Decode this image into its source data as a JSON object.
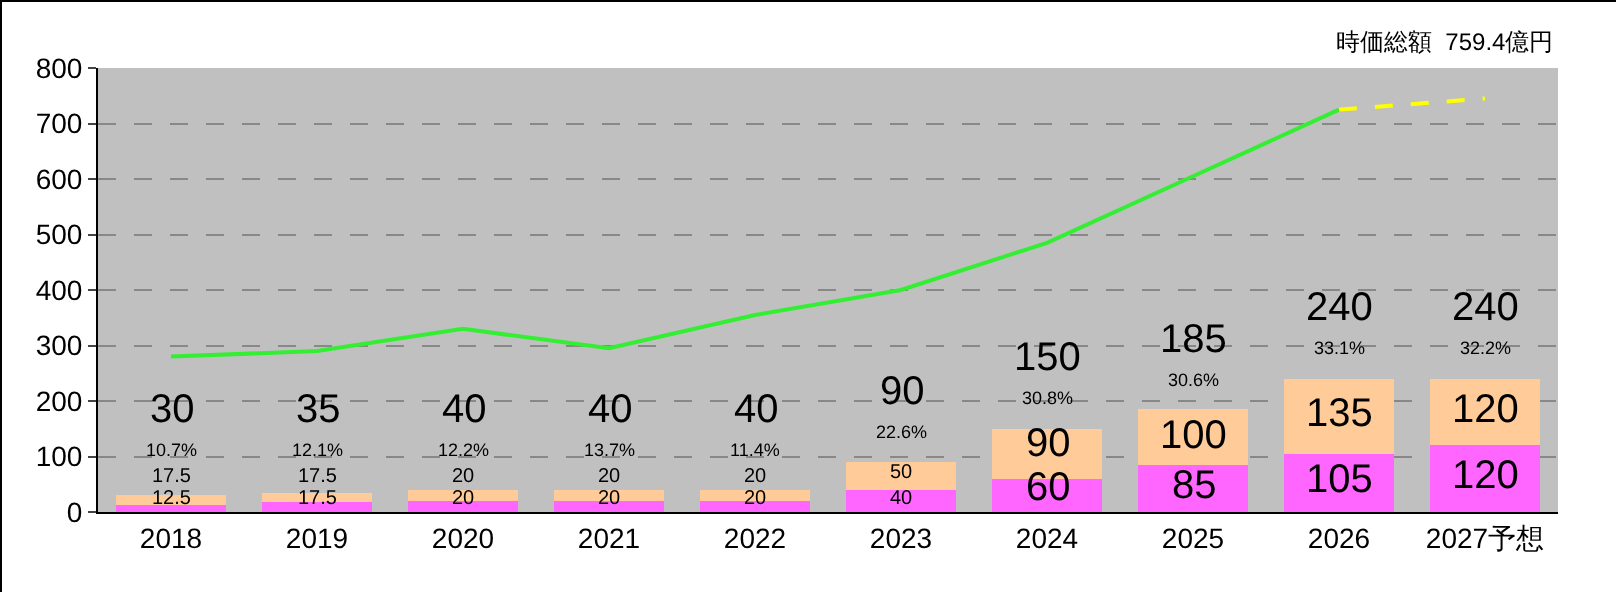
{
  "chart_data": {
    "type": "bar",
    "stacked": true,
    "categories": [
      "2018",
      "2019",
      "2020",
      "2021",
      "2022",
      "2023",
      "2024",
      "2025",
      "2026",
      "2027予想"
    ],
    "series": [
      {
        "color": "#ff66ff",
        "values": [
          12.5,
          17.5,
          20,
          20,
          20,
          40,
          60,
          85,
          105,
          120
        ],
        "value_labels": [
          "12.5",
          "17.5",
          "20",
          "20",
          "20",
          "40",
          "60",
          "85",
          "105",
          "120"
        ]
      },
      {
        "color": "#ffcc99",
        "values": [
          17.5,
          17.5,
          20,
          20,
          20,
          50,
          90,
          100,
          135,
          120
        ],
        "value_labels": [
          "17.5",
          "17.5",
          "20",
          "20",
          "20",
          "50",
          "90",
          "100",
          "135",
          "120"
        ]
      },
      {
        "type": "line",
        "color": "#33ee33",
        "values": [
          280,
          290,
          330,
          295,
          355,
          400,
          485,
          605,
          725,
          null
        ]
      },
      {
        "type": "line",
        "color": "#ffff00",
        "line_style": "dashed",
        "values": [
          null,
          null,
          null,
          null,
          null,
          null,
          null,
          null,
          725,
          745
        ]
      }
    ],
    "totals": [
      "30",
      "35",
      "40",
      "40",
      "40",
      "90",
      "150",
      "185",
      "240",
      "240"
    ],
    "ylim": [
      0,
      800
    ],
    "yticks": [
      0,
      100,
      200,
      300,
      400,
      500,
      600,
      700,
      800
    ],
    "grid": "y",
    "legend": false,
    "annotations": [
      "時価総額  759.4億円",
      {
        "text": "10.7%",
        "x": "2018",
        "y": 30
      },
      {
        "text": "12.1%",
        "x": "2019",
        "y": 35
      },
      {
        "text": "12.2%",
        "x": "2020",
        "y": 40
      },
      {
        "text": "13.7%",
        "x": "2021",
        "y": 40
      },
      {
        "text": "11.4%",
        "x": "2022",
        "y": 40
      },
      {
        "text": "22.6%",
        "x": "2023",
        "y": 90
      },
      {
        "text": "30.8%",
        "x": "2024",
        "y": 150
      },
      {
        "text": "30.6%",
        "x": "2025",
        "y": 185
      },
      {
        "text": "33.1%",
        "x": "2026",
        "y": 240
      },
      {
        "text": "32.2%",
        "x": "2027予想",
        "y": 240
      }
    ]
  }
}
